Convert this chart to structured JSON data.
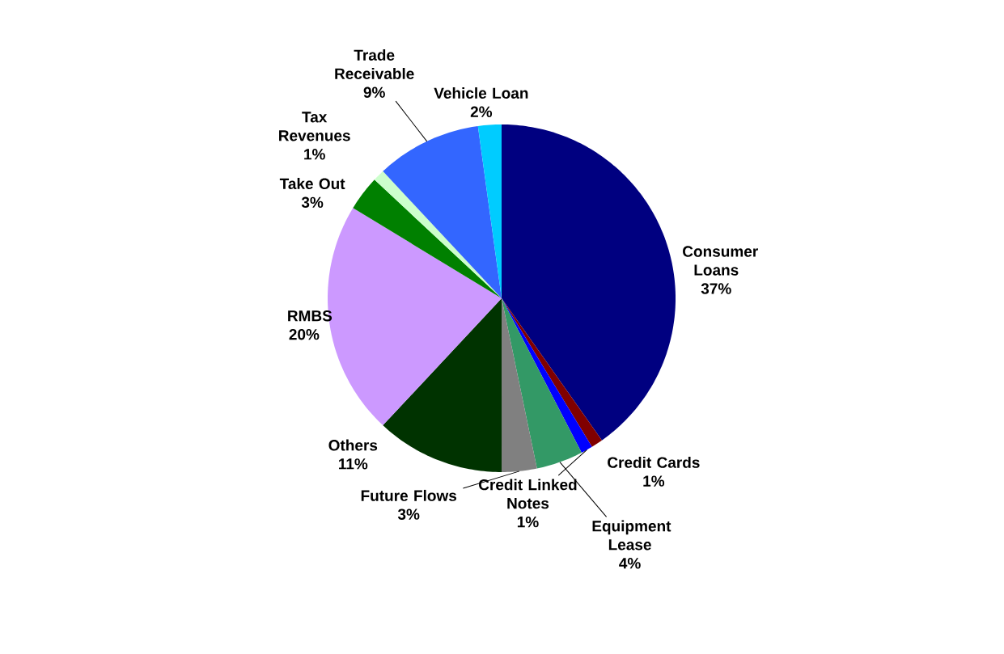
{
  "chart_data": {
    "type": "pie",
    "categories": [
      "Consumer Loans",
      "Credit Cards",
      "Credit Linked Notes",
      "Equipment Lease",
      "Future Flows",
      "Others",
      "RMBS",
      "Take Out",
      "Tax Revenues",
      "Trade Receivable",
      "Vehicle Loan"
    ],
    "values": [
      37,
      1,
      1,
      4,
      3,
      11,
      20,
      3,
      1,
      9,
      2
    ],
    "value_labels": [
      "37%",
      "1%",
      "1%",
      "4%",
      "3%",
      "11%",
      "20%",
      "3%",
      "1%",
      "9%",
      "2%"
    ],
    "colors": [
      "#000080",
      "#800000",
      "#0000ff",
      "#339966",
      "#808080",
      "#003300",
      "#cc99ff",
      "#008000",
      "#ccffcc",
      "#3366ff",
      "#00ccff"
    ]
  }
}
